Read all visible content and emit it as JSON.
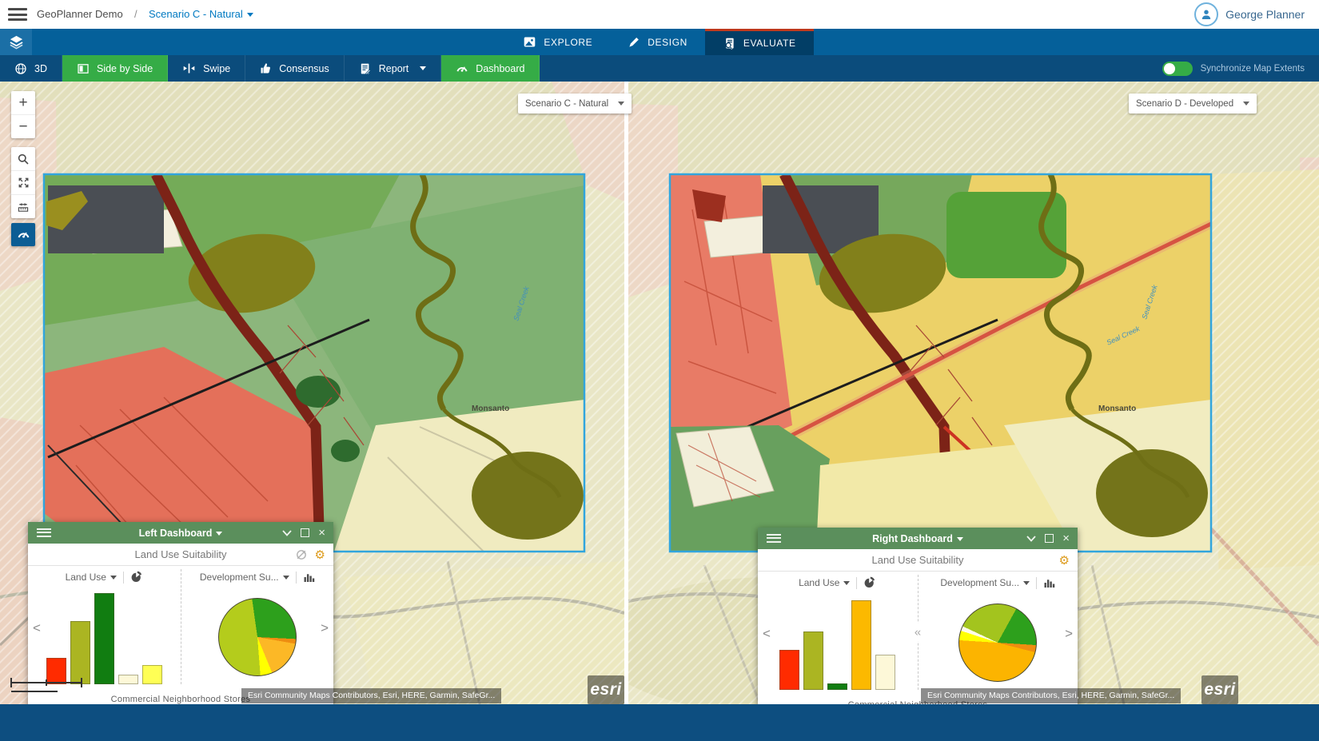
{
  "header": {
    "app_title": "GeoPlanner Demo",
    "separator": "/",
    "scenario_menu": "Scenario C - Natural",
    "user_name": "George Planner"
  },
  "nav": {
    "tabs": [
      {
        "label": "EXPLORE",
        "active": false
      },
      {
        "label": "DESIGN",
        "active": false
      },
      {
        "label": "EVALUATE",
        "active": true
      }
    ]
  },
  "toolbar": {
    "btn_3d": "3D",
    "btn_side_by_side": "Side by Side",
    "btn_swipe": "Swipe",
    "btn_consensus": "Consensus",
    "btn_report": "Report",
    "btn_dashboard": "Dashboard",
    "sync_label": "Synchronize Map Extents",
    "sync_on": true,
    "active_color": "#35ac46"
  },
  "maps": {
    "controls": {
      "zoom_in": "+",
      "zoom_out": "−"
    },
    "left": {
      "scenario": "Scenario C - Natural",
      "place_label": "Monsanto",
      "creek_label": "Seal Creek",
      "attribution": "Esri Community Maps Contributors, Esri, HERE, Garmin, SafeGr...",
      "logo": "esri"
    },
    "right": {
      "scenario": "Scenario D - Developed",
      "place_label": "Monsanto",
      "creek_label": "Seal Creek",
      "attribution": "Esri Community Maps Contributors, Esri, HERE, Garmin, SafeGr...",
      "logo": "esri"
    }
  },
  "dashboards": {
    "icons": {
      "close": "×",
      "prev": "<",
      "next": ">",
      "collapse": "«"
    },
    "left": {
      "title": "Left Dashboard",
      "panel_title": "Land Use Suitability",
      "widget1_selector": "Land Use",
      "widget2_selector": "Development Su...",
      "footer_label": "Commercial Neighborhood Stores"
    },
    "right": {
      "title": "Right Dashboard",
      "panel_title": "Land Use Suitability",
      "widget1_selector": "Land Use",
      "widget2_selector": "Development Su...",
      "footer_label": "Commercial Neighborhood Stores"
    }
  },
  "chart_data": [
    {
      "id": "left-bar",
      "type": "bar",
      "selector_label": "Land Use",
      "category_label": "Commercial Neighborhood Stores",
      "values": [
        28,
        67,
        97,
        10,
        20
      ],
      "ylim": [
        0,
        100
      ],
      "colors": [
        "#ff2b00",
        "#abb522",
        "#117d11",
        "#fdf8d8",
        "#ffff55"
      ]
    },
    {
      "id": "left-pie",
      "type": "pie",
      "selector_label": "Development Su...",
      "category_label": "Commercial Neighborhood Stores",
      "values": [
        28,
        2,
        16,
        5,
        49
      ],
      "start_angle": -8,
      "colors": [
        "#2da01c",
        "#ef8d10",
        "#fcb826",
        "#ffff00",
        "#b4cc1c"
      ]
    },
    {
      "id": "right-bar",
      "type": "bar",
      "selector_label": "Land Use",
      "category_label": "Commercial Neighborhood Stores",
      "values": [
        42,
        62,
        7,
        95,
        37
      ],
      "ylim": [
        0,
        100
      ],
      "colors": [
        "#ff2b00",
        "#abb522",
        "#117d11",
        "#fcb900",
        "#fdf8d8"
      ]
    },
    {
      "id": "right-pie",
      "type": "pie",
      "selector_label": "Development Su...",
      "category_label": "Commercial Neighborhood Stores",
      "values": [
        8,
        18,
        3,
        47,
        4,
        2,
        18
      ],
      "start_angle": 0,
      "colors": [
        "#a3c41e",
        "#2da01c",
        "#ef8d10",
        "#fcb400",
        "#ffff00",
        "#fffbe8",
        "#a3c41e"
      ]
    }
  ]
}
